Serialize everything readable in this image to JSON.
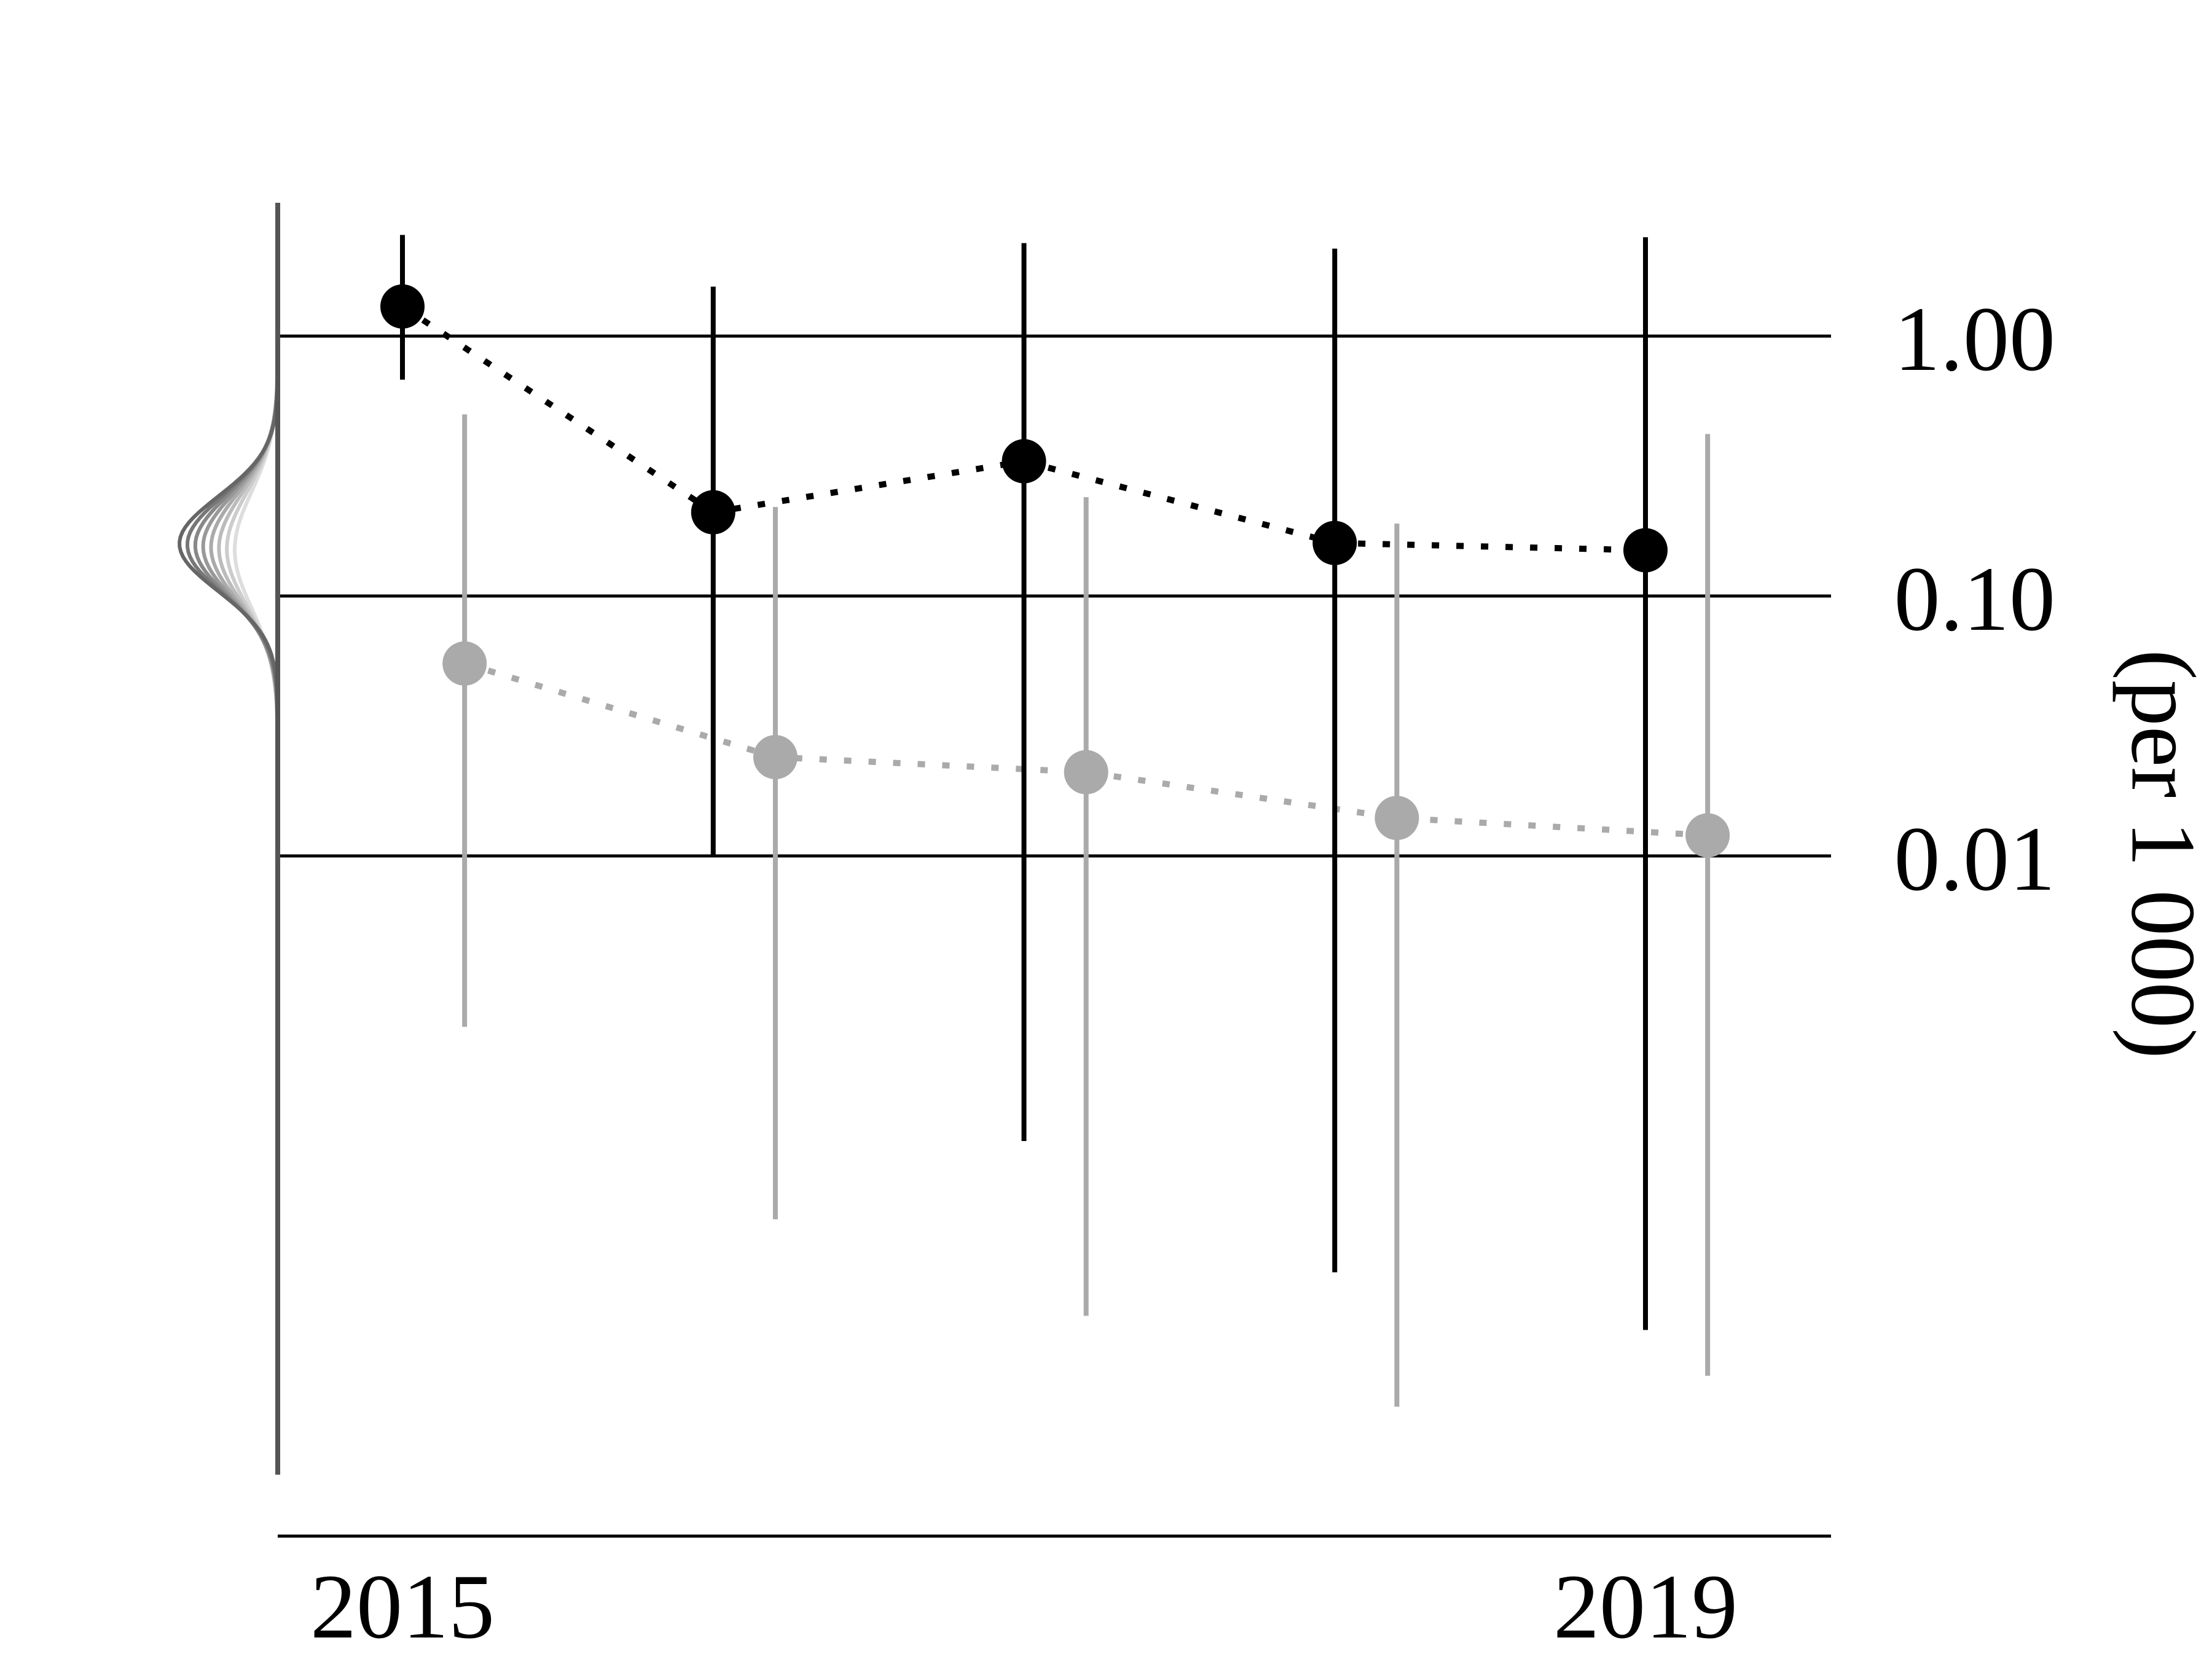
{
  "chart_data": {
    "type": "scatter",
    "title": "",
    "ylabel": "(per 1 000)",
    "y_scale": "log",
    "ylim": [
      0.0001,
      2.5
    ],
    "y_ticks": [
      {
        "value": 1.0,
        "label": "1.00"
      },
      {
        "value": 0.1,
        "label": "0.10"
      },
      {
        "value": 0.01,
        "label": "0.01"
      }
    ],
    "xlim": [
      2014.75,
      2019.4
    ],
    "x_ticks": [
      {
        "value": 2015,
        "label": "2015"
      },
      {
        "value": 2019,
        "label": "2019"
      }
    ],
    "grid": "horizontal",
    "series": [
      {
        "color": "#000000",
        "x": [
          2015,
          2016,
          2017,
          2018,
          2019
        ],
        "y": [
          1.3,
          0.21,
          0.33,
          0.16,
          0.15
        ],
        "lower": [
          0.68,
          0.01,
          0.0008,
          0.00025,
          0.00015
        ],
        "upper": [
          2.45,
          1.55,
          2.28,
          2.17,
          2.4
        ]
      },
      {
        "color": "#aaaaaa",
        "x": [
          2015.2,
          2016.2,
          2017.2,
          2018.2,
          2019.2
        ],
        "y": [
          0.055,
          0.024,
          0.021,
          0.014,
          0.012
        ],
        "lower": [
          0.0022,
          0.0004,
          0.00017,
          7.6e-05,
          0.0001
        ],
        "upper": [
          0.5,
          0.22,
          0.24,
          0.19,
          0.42
        ]
      }
    ],
    "side_curves": {
      "count": 8,
      "colors": [
        "#dddddd",
        "#cccccc",
        "#bbbbbb",
        "#aaaaaa",
        "#999999",
        "#888888",
        "#777777",
        "#666666"
      ]
    }
  }
}
